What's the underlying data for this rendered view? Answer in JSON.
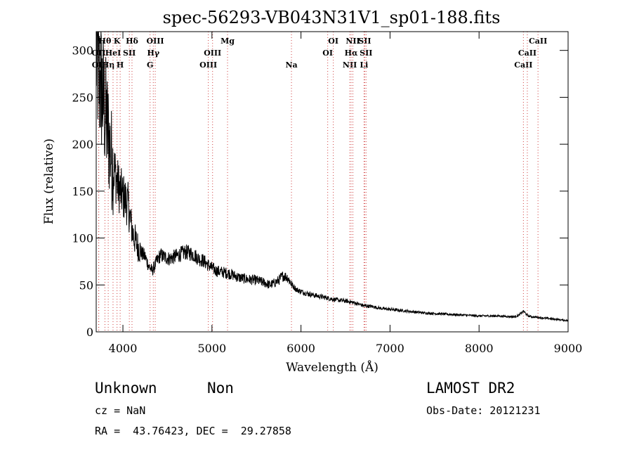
{
  "chart_data": {
    "type": "line",
    "title": "spec-56293-VB043N31V1_sp01-188.fits",
    "xlabel": "Wavelength (Å)",
    "ylabel": "Flux (relative)",
    "xlim": [
      3700,
      9000
    ],
    "ylim": [
      0,
      320
    ],
    "xticks": [
      4000,
      5000,
      6000,
      7000,
      8000,
      9000
    ],
    "yticks": [
      0,
      50,
      100,
      150,
      200,
      250,
      300
    ],
    "grid": false,
    "series": [
      {
        "x": [
          3700,
          3730,
          3760,
          3790,
          3820,
          3850,
          3880,
          3910,
          3940,
          3970,
          4000,
          4030,
          4060,
          4090,
          4120,
          4150,
          4200,
          4250,
          4290,
          4330,
          4380,
          4420,
          4460,
          4520,
          4580,
          4650,
          4700,
          4750,
          4800,
          4850,
          4900,
          4950,
          5000,
          5050,
          5100,
          5150,
          5200,
          5300,
          5400,
          5500,
          5600,
          5650,
          5700,
          5750,
          5800,
          5850,
          5900,
          5950,
          6000,
          6100,
          6200,
          6300,
          6400,
          6500,
          6600,
          6700,
          6800,
          6900,
          7000,
          7200,
          7400,
          7600,
          7800,
          8000,
          8200,
          8400,
          8450,
          8500,
          8550,
          8600,
          8700,
          8800,
          8900,
          9000
        ],
        "y": [
          300,
          270,
          260,
          240,
          220,
          200,
          180,
          170,
          158,
          150,
          145,
          140,
          135,
          115,
          102,
          95,
          85,
          80,
          70,
          65,
          75,
          82,
          80,
          78,
          80,
          83,
          85,
          84,
          82,
          78,
          76,
          72,
          68,
          65,
          64,
          63,
          62,
          58,
          56,
          55,
          52,
          50,
          52,
          55,
          60,
          58,
          50,
          45,
          43,
          40,
          38,
          36,
          34,
          33,
          31,
          28,
          27,
          25,
          24,
          22,
          20,
          19,
          18,
          17,
          17,
          16,
          18,
          22,
          17,
          16,
          15,
          14,
          13,
          12
        ]
      }
    ],
    "line_markers": [
      {
        "name": "Hθ",
        "x": 3798,
        "row": 0
      },
      {
        "name": "OII",
        "x": 3727,
        "row": 1
      },
      {
        "name": "OII",
        "x": 3729,
        "row": 2
      },
      {
        "name": "Hη",
        "x": 3835,
        "row": 2
      },
      {
        "name": "HeI",
        "x": 3889,
        "row": 1
      },
      {
        "name": "K",
        "x": 3934,
        "row": 0
      },
      {
        "name": "H",
        "x": 3969,
        "row": 2
      },
      {
        "name": "SII",
        "x": 4072,
        "row": 1
      },
      {
        "name": "Hδ",
        "x": 4102,
        "row": 0
      },
      {
        "name": "G",
        "x": 4305,
        "row": 2
      },
      {
        "name": "Hγ",
        "x": 4341,
        "row": 1
      },
      {
        "name": "OIII",
        "x": 4363,
        "row": 0
      },
      {
        "name": "OIII",
        "x": 4959,
        "row": 2
      },
      {
        "name": "OIII",
        "x": 5007,
        "row": 1
      },
      {
        "name": "Mg",
        "x": 5175,
        "row": 0
      },
      {
        "name": "Na",
        "x": 5893,
        "row": 2
      },
      {
        "name": "OI",
        "x": 6300,
        "row": 1
      },
      {
        "name": "OI",
        "x": 6363,
        "row": 0
      },
      {
        "name": "NII",
        "x": 6548,
        "row": 2
      },
      {
        "name": "Hα",
        "x": 6563,
        "row": 1
      },
      {
        "name": "NII",
        "x": 6583,
        "row": 0
      },
      {
        "name": "SII",
        "x": 6716,
        "row": 0
      },
      {
        "name": "SII",
        "x": 6731,
        "row": 1
      },
      {
        "name": "Li",
        "x": 6708,
        "row": 2
      },
      {
        "name": "CaII",
        "x": 8498,
        "row": 2
      },
      {
        "name": "CaII",
        "x": 8542,
        "row": 1
      },
      {
        "name": "CaII",
        "x": 8662,
        "row": 0
      }
    ]
  },
  "info": {
    "class": "Unknown",
    "subclass": "Non",
    "survey": "LAMOST DR2",
    "cz": "cz = NaN",
    "obs_date": "Obs-Date: 20121231",
    "coords": "RA =  43.76423, DEC =  29.27858"
  },
  "colors": {
    "marker_lines": "#d04040",
    "spectrum": "#000000"
  }
}
